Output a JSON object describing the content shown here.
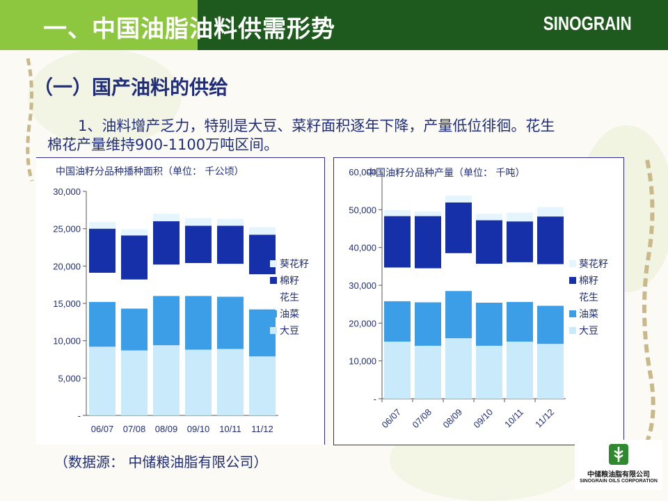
{
  "header": {
    "title": "一、中国油脂油料供需形势",
    "brand": "SINOGRAIN"
  },
  "section": {
    "heading": "（一）国产油料的供给",
    "paragraph_line1": "1、油料增产乏力，特别是大豆、菜籽面积逐年下降，产量低位徘徊。花生",
    "paragraph_line2": "棉花产量维持900-1100万吨区间。"
  },
  "source": "（数据源：  中储粮油脂有限公司）",
  "logo": {
    "name_cn": "中储粮油脂有限公司",
    "name_en": "SINOGRAIN OILS CORPORATION"
  },
  "colors": {
    "soybean": "#c9eafa",
    "rapeseed": "#3d9ee8",
    "peanut": "#ffffff",
    "cotton": "#1530a8",
    "sunflower": "#e4f5fd",
    "text": "#1f2d7a",
    "header_green": "#8dc63f",
    "header_dark": "#1e5a1e"
  },
  "chart_data": [
    {
      "type": "bar",
      "stacked": true,
      "title": "中国油籽分品种播种面积（单位：  千公顷）",
      "categories": [
        "06/07",
        "07/08",
        "08/09",
        "09/10",
        "10/11",
        "11/12"
      ],
      "ylim": [
        0,
        30000
      ],
      "yticks": [
        "30,000",
        "25,000",
        "20,000",
        "15,000",
        "10,000",
        "5,000",
        "-"
      ],
      "ytick_values": [
        30000,
        25000,
        20000,
        15000,
        10000,
        5000,
        0
      ],
      "legend_position": "right",
      "series": [
        {
          "name": "大豆",
          "key": "soybean",
          "values": [
            9200,
            8700,
            9400,
            8800,
            8900,
            7900
          ]
        },
        {
          "name": "油菜",
          "key": "rapeseed",
          "values": [
            6000,
            5600,
            6600,
            7200,
            7000,
            6300
          ]
        },
        {
          "name": "花生",
          "key": "peanut",
          "values": [
            3900,
            3900,
            4200,
            4400,
            4400,
            4700
          ]
        },
        {
          "name": "棉籽",
          "key": "cotton",
          "values": [
            5900,
            5900,
            5800,
            5000,
            5100,
            5300
          ]
        },
        {
          "name": "葵花籽",
          "key": "sunflower",
          "values": [
            900,
            800,
            1000,
            1000,
            900,
            1000
          ]
        }
      ],
      "legend_order": [
        "葵花籽",
        "棉籽",
        "花生",
        "油菜",
        "大豆"
      ]
    },
    {
      "type": "bar",
      "stacked": true,
      "title": "中国油籽分品种产量（单位：  千吨）",
      "categories": [
        "06/07",
        "07/08",
        "08/09",
        "09/10",
        "10/11",
        "11/12"
      ],
      "ylim": [
        0,
        60000
      ],
      "yticks": [
        "60,000",
        "50,000",
        "40,000",
        "30,000",
        "20,000",
        "10,000",
        "-"
      ],
      "ytick_values": [
        60000,
        50000,
        40000,
        30000,
        20000,
        10000,
        0
      ],
      "legend_position": "right",
      "series": [
        {
          "name": "大豆",
          "key": "soybean",
          "values": [
            15100,
            14000,
            16000,
            14000,
            15100,
            14500
          ]
        },
        {
          "name": "油菜",
          "key": "rapeseed",
          "values": [
            10700,
            11500,
            12500,
            11400,
            10500,
            10100
          ]
        },
        {
          "name": "花生",
          "key": "peanut",
          "values": [
            8900,
            9000,
            10000,
            10300,
            10500,
            11000
          ]
        },
        {
          "name": "棉籽",
          "key": "cotton",
          "values": [
            13600,
            13800,
            13400,
            11500,
            10800,
            12600
          ]
        },
        {
          "name": "葵花籽",
          "key": "sunflower",
          "values": [
            1600,
            1200,
            1800,
            1700,
            2300,
            2500
          ]
        }
      ],
      "legend_order": [
        "葵花籽",
        "棉籽",
        "花生",
        "油菜",
        "大豆"
      ]
    }
  ]
}
